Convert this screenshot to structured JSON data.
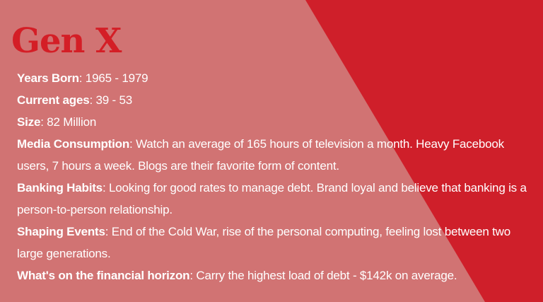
{
  "colors": {
    "panel_light": "#d17373",
    "panel_dark": "#cf1f2a",
    "title": "#d41e26",
    "text": "#ffffff"
  },
  "title": "Gen X",
  "facts": [
    {
      "label": "Years Born",
      "value": ": 1965 - 1979"
    },
    {
      "label": "Current ages",
      "value": ": 39 - 53"
    },
    {
      "label": "Size",
      "value": ": 82 Million"
    },
    {
      "label": "Media Consumption",
      "value": ": Watch an average of 165 hours of television a month. Heavy Facebook users, 7 hours a week. Blogs are their favorite form of content."
    },
    {
      "label": "Banking Habits",
      "value": ": Looking for good rates to manage debt. Brand loyal and believe that banking is a person-to-person relationship."
    },
    {
      "label": "Shaping Events",
      "value": ": End of the Cold War, rise of the personal computing, feeling lost between two large generations."
    },
    {
      "label": "What's on the financial horizon",
      "value": ": Carry the highest load of debt - $142k on average."
    }
  ]
}
